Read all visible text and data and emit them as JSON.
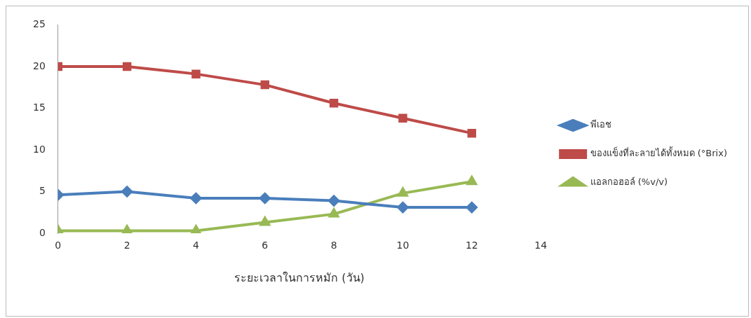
{
  "chart_data": {
    "type": "line",
    "xlabel": "ระยะเวลาในการหมัก (วัน)",
    "x": [
      0,
      2,
      4,
      6,
      8,
      10,
      12
    ],
    "series": [
      {
        "name": "พีเอช",
        "color": "#4a7ebb",
        "marker": "diamond",
        "values": [
          4.6,
          5.0,
          4.2,
          4.2,
          3.9,
          3.1,
          3.1
        ]
      },
      {
        "name": "ของแข็งที่ละลายได้ทั้งหมด (°Brix)",
        "color": "#be4b48",
        "marker": "square",
        "values": [
          20.0,
          20.0,
          19.1,
          17.8,
          15.6,
          13.8,
          12.0
        ]
      },
      {
        "name": "แอลกอฮอล์ (%v/v)",
        "color": "#98b954",
        "marker": "triangle",
        "values": [
          0.3,
          0.3,
          0.3,
          1.3,
          2.3,
          4.8,
          6.2
        ]
      }
    ],
    "xlim": [
      0,
      14
    ],
    "xticks": [
      0,
      2,
      4,
      6,
      8,
      10,
      12,
      14
    ],
    "ylim": [
      0,
      25
    ],
    "yticks": [
      0,
      5,
      10,
      15,
      20,
      25
    ],
    "grid": false,
    "legend": "right",
    "line_style": "solid"
  }
}
